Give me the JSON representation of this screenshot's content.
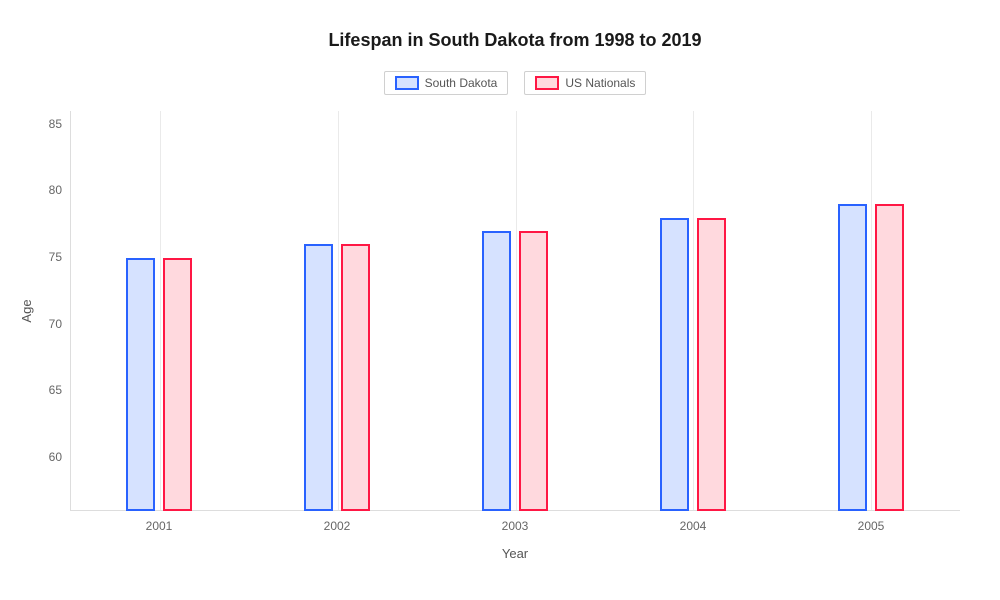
{
  "chart": {
    "type": "bar",
    "title": "Lifespan in South Dakota from 1998 to 2019",
    "title_fontsize": 18,
    "xlabel": "Year",
    "ylabel": "Age",
    "label_fontsize": 13,
    "tick_fontsize": 12,
    "background_color": "#ffffff",
    "grid_color": "#eaeaea",
    "axis_color": "#dddddd",
    "text_color": "#666666",
    "ylim": [
      57,
      87
    ],
    "yticks": [
      60,
      65,
      70,
      75,
      80,
      85
    ],
    "categories": [
      "2001",
      "2002",
      "2003",
      "2004",
      "2005"
    ],
    "series": [
      {
        "name": "South Dakota",
        "border_color": "#2962ff",
        "fill_color": "#d6e2ff",
        "values": [
          76,
          77,
          78,
          79,
          80
        ]
      },
      {
        "name": "US Nationals",
        "border_color": "#ff1744",
        "fill_color": "#ffd9de",
        "values": [
          76,
          77,
          78,
          79,
          80
        ]
      }
    ],
    "bar_width_pct": 3.2,
    "bar_gap_pct": 1.0,
    "group_positions_pct": [
      10,
      30,
      50,
      70,
      90
    ]
  }
}
